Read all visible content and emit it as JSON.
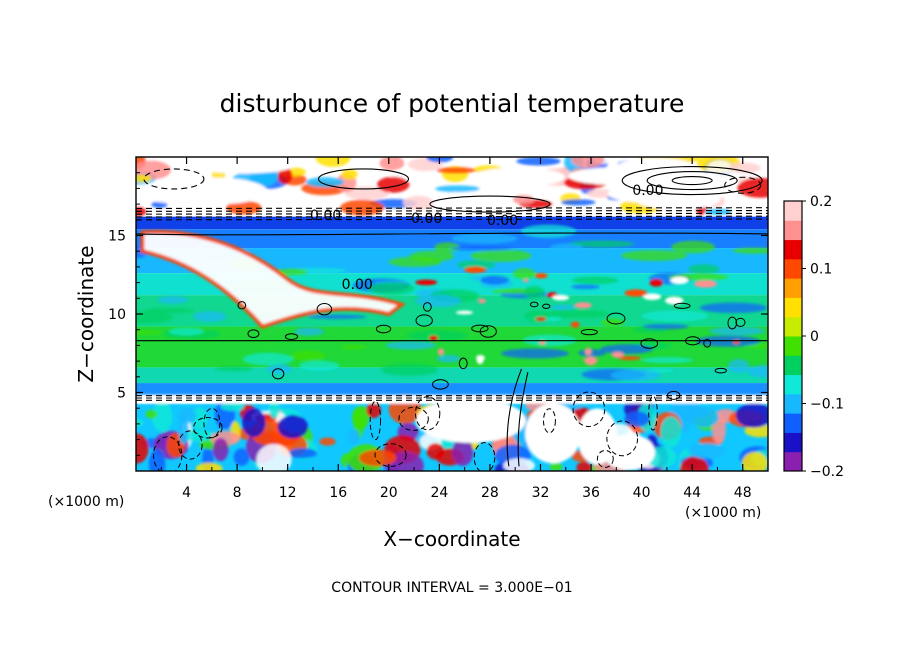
{
  "chart_data": {
    "type": "heatmap",
    "title": "disturbunce of potential temperature",
    "xlabel": "X−coordinate",
    "ylabel": "Z−coordinate",
    "x_unit": "(×1000 m)",
    "x_unit_right": "(×1000 m)",
    "xlim": [
      0,
      50
    ],
    "ylim": [
      0,
      20
    ],
    "x_ticks": [
      "4",
      "8",
      "12",
      "16",
      "20",
      "24",
      "28",
      "32",
      "36",
      "40",
      "44",
      "48"
    ],
    "y_ticks": [
      "5",
      "10",
      "15"
    ],
    "colorbar": {
      "range": [
        -0.2,
        0.2
      ],
      "tick_values": [
        0.2,
        0.1,
        0,
        -0.1,
        -0.2
      ],
      "tick_labels": [
        "0.2",
        "0.1",
        "0",
        "−0.1",
        "−0.2"
      ],
      "colors": [
        "#8a1fb0",
        "#1a10c8",
        "#1060ff",
        "#18b8ff",
        "#10e8d8",
        "#00d060",
        "#40e000",
        "#c8ec00",
        "#ffe000",
        "#ffa000",
        "#ff4800",
        "#e80000",
        "#ff9090",
        "#ffd0d0"
      ]
    },
    "contour_labels": [
      {
        "text": "0.00",
        "x": 15,
        "z": 16.3
      },
      {
        "text": "0.00",
        "x": 23,
        "z": 16.1
      },
      {
        "text": "0.00",
        "x": 29,
        "z": 16.0
      },
      {
        "text": "0.00",
        "x": 40.5,
        "z": 17.9
      },
      {
        "text": "0.00",
        "x": 17.5,
        "z": 11.9
      }
    ],
    "contour_interval_text": "CONTOUR INTERVAL = 3.000E−01"
  }
}
